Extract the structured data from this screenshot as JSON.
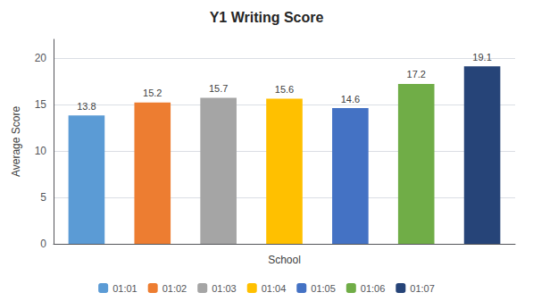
{
  "chart_data": {
    "type": "bar",
    "title": "Y1 Writing Score",
    "xlabel": "School",
    "ylabel": "Average Score",
    "categories": [
      "01:01",
      "01:02",
      "01:03",
      "01:04",
      "01:05",
      "01:06",
      "01:07"
    ],
    "values": [
      13.8,
      15.2,
      15.7,
      15.6,
      14.6,
      17.2,
      19.1
    ],
    "colors": [
      "#5B9BD5",
      "#ED7D31",
      "#A5A5A5",
      "#FFC000",
      "#4472C4",
      "#70AD47",
      "#264478"
    ],
    "ylim": [
      0,
      22
    ],
    "yticks": [
      0,
      5,
      10,
      15,
      20
    ],
    "grid": true,
    "data_labels": true,
    "legend": "bottom",
    "tick_labels": "y"
  }
}
